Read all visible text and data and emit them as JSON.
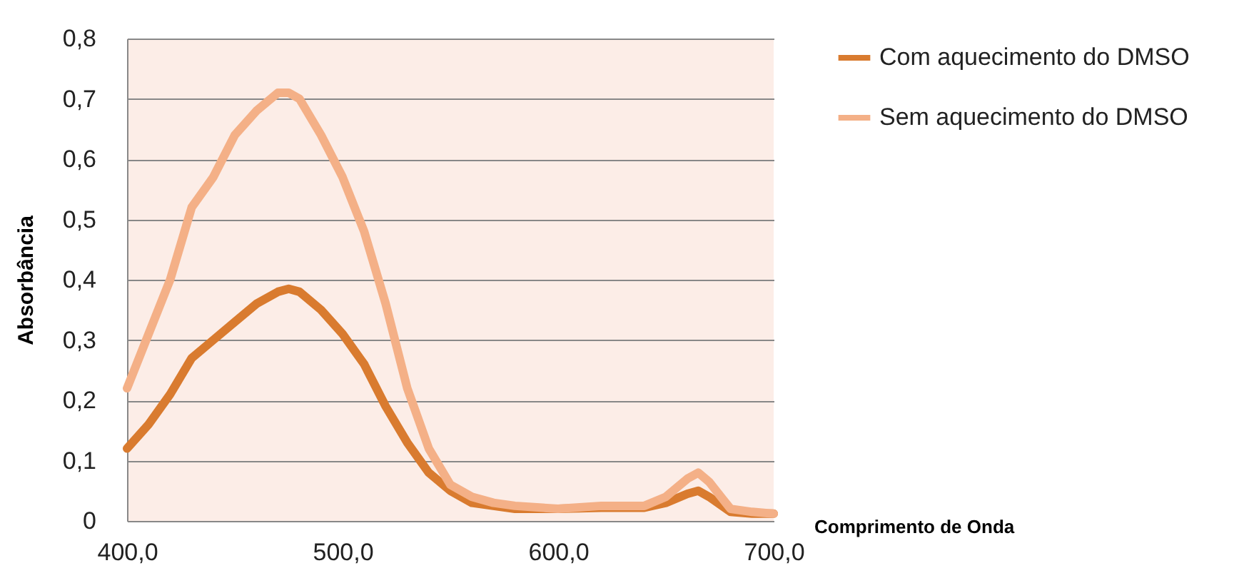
{
  "chart_data": {
    "type": "line",
    "ylabel": "Absorbância",
    "xlabel": "Comprimento de Onda",
    "xlim": [
      400,
      700
    ],
    "xticks": [
      {
        "value": 400,
        "label": "400,0"
      },
      {
        "value": 500,
        "label": "500,0"
      },
      {
        "value": 600,
        "label": "600,0"
      },
      {
        "value": 700,
        "label": "700,0"
      }
    ],
    "ylim": [
      0,
      0.8
    ],
    "yticks": [
      0,
      {
        "value": 0.1,
        "label": "0,1"
      },
      {
        "value": 0.2,
        "label": "0,2"
      },
      {
        "value": 0.3,
        "label": "0,3"
      },
      {
        "value": 0.4,
        "label": "0,4"
      },
      {
        "value": 0.5,
        "label": "0,5"
      },
      {
        "value": 0.6,
        "label": "0,6"
      },
      {
        "value": 0.7,
        "label": "0,7"
      },
      {
        "value": 0.8,
        "label": "0,8"
      }
    ],
    "grid": "y",
    "legend": "right",
    "marker": "none",
    "line_style": "solid",
    "x": [
      400,
      410,
      420,
      430,
      440,
      450,
      460,
      470,
      475,
      480,
      490,
      500,
      510,
      520,
      530,
      540,
      550,
      560,
      570,
      580,
      600,
      620,
      640,
      650,
      660,
      665,
      670,
      680,
      690,
      700
    ],
    "series": [
      {
        "name": "Com aquecimento do DMSO",
        "color": "#d97b2f",
        "values": [
          0.12,
          0.16,
          0.21,
          0.27,
          0.3,
          0.33,
          0.36,
          0.38,
          0.385,
          0.38,
          0.35,
          0.31,
          0.26,
          0.19,
          0.13,
          0.08,
          0.05,
          0.03,
          0.025,
          0.02,
          0.02,
          0.022,
          0.022,
          0.03,
          0.045,
          0.05,
          0.04,
          0.015,
          0.012,
          0.012
        ]
      },
      {
        "name": "Sem aquecimento do DMSO",
        "color": "#f4b087",
        "values": [
          0.22,
          0.31,
          0.4,
          0.52,
          0.57,
          0.64,
          0.68,
          0.71,
          0.71,
          0.7,
          0.64,
          0.57,
          0.48,
          0.36,
          0.22,
          0.12,
          0.06,
          0.04,
          0.03,
          0.025,
          0.02,
          0.025,
          0.025,
          0.04,
          0.07,
          0.08,
          0.065,
          0.02,
          0.015,
          0.012
        ]
      }
    ]
  }
}
